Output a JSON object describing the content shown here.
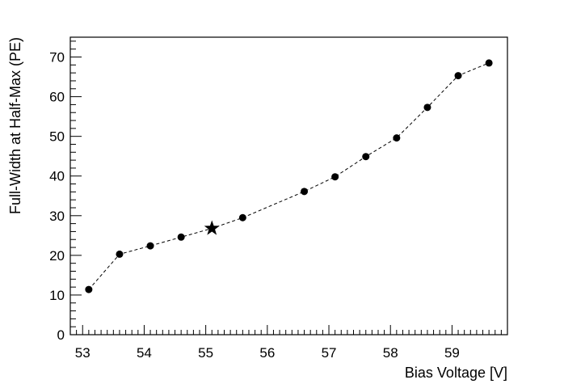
{
  "chart_data": {
    "type": "scatter",
    "title": "",
    "xlabel": "Bias Voltage [V]",
    "ylabel": "Full-Width at Half-Max (PE)",
    "xlim": [
      52.8,
      59.9
    ],
    "ylim": [
      0,
      75
    ],
    "x_ticks": [
      "53",
      "54",
      "55",
      "56",
      "57",
      "58",
      "59"
    ],
    "y_ticks": [
      "0",
      "10",
      "20",
      "30",
      "40",
      "50",
      "60",
      "70"
    ],
    "grid": false,
    "line_style": "dashed",
    "series": [
      {
        "x": [
          53.1,
          53.6,
          54.1,
          54.6,
          55.1,
          55.6,
          56.6,
          57.1,
          57.6,
          58.1,
          58.6,
          59.1,
          59.6
        ],
        "y": [
          11.4,
          20.3,
          22.4,
          24.6,
          26.8,
          29.5,
          36.1,
          39.8,
          44.9,
          49.6,
          57.3,
          65.3,
          68.5
        ],
        "marker": "circle",
        "color": "#000000"
      }
    ],
    "highlight": {
      "x": 55.1,
      "y": 26.8,
      "marker": "star",
      "color": "#000000"
    }
  }
}
